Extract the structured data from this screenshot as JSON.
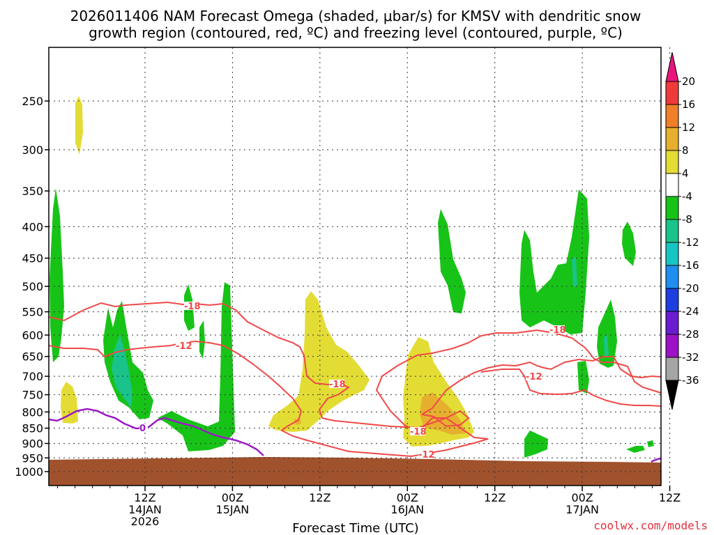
{
  "chart_data": {
    "type": "heatmap",
    "title_line1": "2026011406 NAM Forecast Omega (shaded, μbar/s) for KMSV with dendritic snow",
    "title_line2": "growth region (contoured, red, ºC) and freezing level (contoured, purple, ºC)",
    "xlabel": "Forecast Time (UTC)",
    "ylabel": "",
    "y_axis": {
      "unit": "hPa",
      "ticks": [
        "250",
        "300",
        "350",
        "400",
        "450",
        "500",
        "550",
        "600",
        "650",
        "700",
        "750",
        "800",
        "850",
        "900",
        "950",
        "1000"
      ]
    },
    "x_axis": {
      "unit": "forecast hour",
      "range": [
        -5,
        65
      ],
      "ticks": [
        {
          "hour": 6,
          "line1": "12Z",
          "line2": "14JAN",
          "line3": "2026"
        },
        {
          "hour": 16,
          "line1": "00Z",
          "line2": "15JAN",
          "line3": ""
        },
        {
          "hour": 26,
          "line1": "12Z",
          "line2": "",
          "line3": ""
        },
        {
          "hour": 36,
          "line1": "00Z",
          "line2": "16JAN",
          "line3": ""
        },
        {
          "hour": 46,
          "line1": "12Z",
          "line2": "",
          "line3": ""
        },
        {
          "hour": 56,
          "line1": "00Z",
          "line2": "17JAN",
          "line3": ""
        },
        {
          "hour": 66,
          "line1": "12Z",
          "line2": "",
          "line3": ""
        }
      ]
    },
    "colorbar": {
      "labels": [
        "20",
        "16",
        "12",
        "8",
        "4",
        "-4",
        "-8",
        "-12",
        "-16",
        "-20",
        "-24",
        "-28",
        "-32",
        "-36"
      ],
      "bins": [
        {
          "from": 20,
          "to": 99,
          "color": "#e8147d"
        },
        {
          "from": 16,
          "to": 20,
          "color": "#f03a3a"
        },
        {
          "from": 12,
          "to": 16,
          "color": "#f07f2a"
        },
        {
          "from": 8,
          "to": 12,
          "color": "#e6b02e"
        },
        {
          "from": 4,
          "to": 8,
          "color": "#e3dc35"
        },
        {
          "from": -4,
          "to": 4,
          "color": "#ffffff"
        },
        {
          "from": -8,
          "to": -4,
          "color": "#18c318"
        },
        {
          "from": -12,
          "to": -8,
          "color": "#19c38a"
        },
        {
          "from": -16,
          "to": -12,
          "color": "#17c5c5"
        },
        {
          "from": -20,
          "to": -16,
          "color": "#1e8ff0"
        },
        {
          "from": -24,
          "to": -20,
          "color": "#1d3fe0"
        },
        {
          "from": -28,
          "to": -24,
          "color": "#6a1cd0"
        },
        {
          "from": -32,
          "to": -28,
          "color": "#9d12c6"
        },
        {
          "from": -36,
          "to": -32,
          "color": "#a5a5a5"
        },
        {
          "from": -99,
          "to": -36,
          "color": "#000000"
        }
      ]
    },
    "contour_labels": {
      "dgz_warm": "-12",
      "dgz_cold": "-18",
      "freezing": "0"
    },
    "colors": {
      "dgz_contour": "#f04848",
      "freezing_contour": "#9a1ac4",
      "terrain": "#a0522d",
      "grid": "#333333"
    }
  },
  "credit": "coolwx.com/models"
}
